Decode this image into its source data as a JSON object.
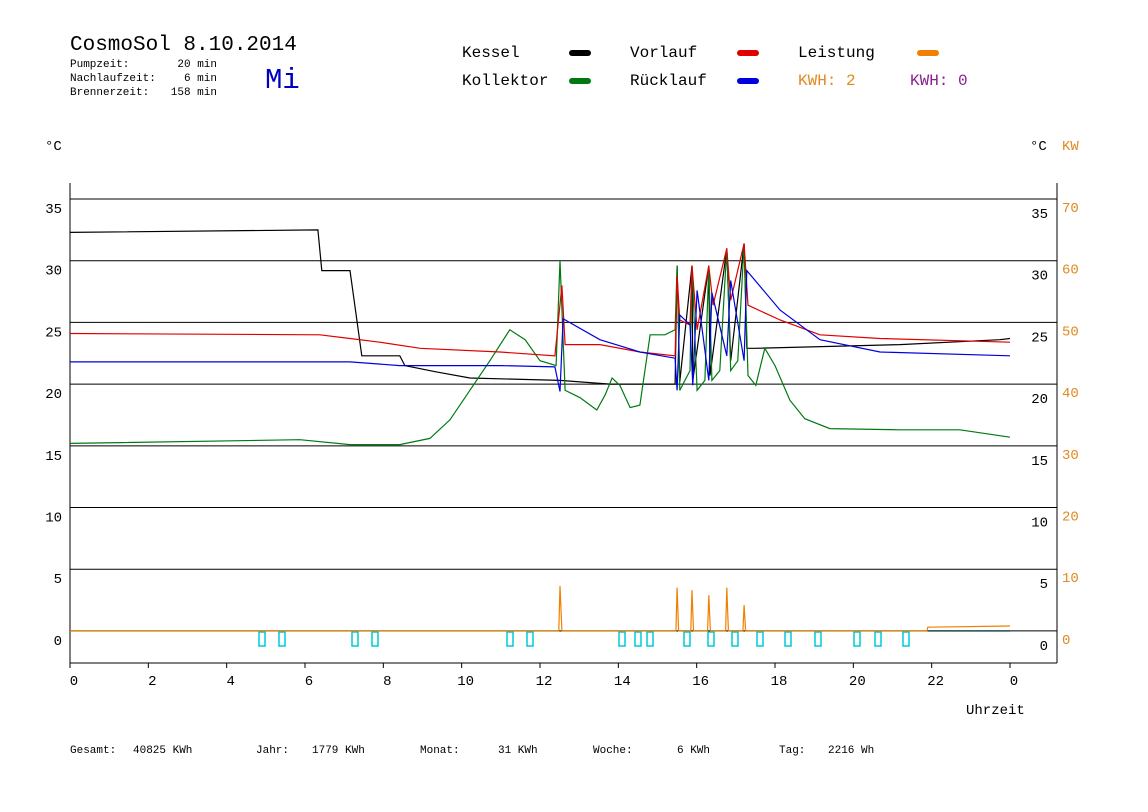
{
  "header": {
    "title": "CosmoSol 8.10.2014",
    "day": "Mi",
    "params": [
      {
        "label": "Pumpzeit:",
        "value": "20 min"
      },
      {
        "label": "Nachlaufzeit:",
        "value": "6 min"
      },
      {
        "label": "Brennerzeit:",
        "value": "158 min"
      }
    ]
  },
  "chart_data": {
    "type": "line",
    "y_label": "°C",
    "y2_label": "KW",
    "x_label": "Uhrzeit",
    "kwh_labels": [
      {
        "text": "KWH: 2",
        "color": "#e08a20"
      },
      {
        "text": "KWH: 0",
        "color": "#8a2090"
      }
    ],
    "xlim": [
      0,
      25.2
    ],
    "xticks": [
      0,
      2,
      4,
      6,
      8,
      10,
      12,
      14,
      16,
      18,
      20,
      22,
      {
        "value": 24,
        "label": "0"
      }
    ],
    "ylim": [
      -2.6,
      36.3
    ],
    "yticks": [
      0,
      5,
      10,
      15,
      20,
      25,
      30,
      35
    ],
    "y2lim": [
      -5.2,
      72.6
    ],
    "y2ticks": [
      0,
      10,
      20,
      30,
      40,
      50,
      60,
      70
    ],
    "grid": true,
    "series": [
      {
        "name": "Kessel",
        "color": "#000000",
        "x": [
          0,
          6.33,
          6.43,
          7.15,
          7.45,
          8.42,
          8.55,
          9.34,
          10.21,
          12.51,
          13.79,
          14.55,
          15.45,
          15.5,
          15.57,
          15.88,
          15.9,
          16.31,
          16.34,
          16.77,
          16.87,
          17.21,
          17.28,
          17.5,
          21.19,
          23.74,
          24
        ],
        "values": [
          32.3,
          32.5,
          29.2,
          29.2,
          22.3,
          22.3,
          21.5,
          21.0,
          20.5,
          20.3,
          20.0,
          20.0,
          20.0,
          29.6,
          20.2,
          29.6,
          20.3,
          29.6,
          20.7,
          31.0,
          21.9,
          31.4,
          22.9,
          22.9,
          23.2,
          23.6,
          23.7
        ]
      },
      {
        "name": "Kollektor",
        "color": "#007a10",
        "x": [
          0,
          5.87,
          7.15,
          8.42,
          9.19,
          9.7,
          10.21,
          10.72,
          11.23,
          11.62,
          12.0,
          12.41,
          12.51,
          12.64,
          13.02,
          13.45,
          13.66,
          13.84,
          14.04,
          14.3,
          14.55,
          14.81,
          15.19,
          15.45,
          15.5,
          15.57,
          15.83,
          15.88,
          16.01,
          16.21,
          16.31,
          16.39,
          16.59,
          16.77,
          16.87,
          17.05,
          17.21,
          17.31,
          17.51,
          17.74,
          18.0,
          18.38,
          18.76,
          19.4,
          21.19,
          22.72,
          24
        ],
        "values": [
          15.2,
          15.5,
          15.1,
          15.1,
          15.6,
          17.1,
          19.5,
          21.9,
          24.4,
          23.6,
          21.9,
          21.5,
          30.0,
          19.5,
          18.9,
          17.9,
          19.1,
          20.5,
          19.9,
          18.1,
          18.3,
          24.0,
          24.0,
          24.4,
          29.6,
          19.5,
          21.1,
          29.6,
          19.5,
          20.3,
          29.6,
          20.3,
          21.1,
          31.0,
          21.1,
          21.9,
          31.4,
          20.7,
          19.9,
          22.9,
          21.5,
          18.7,
          17.2,
          16.4,
          16.3,
          16.3,
          15.7
        ]
      },
      {
        "name": "Vorlauf",
        "color": "#e00000",
        "x": [
          0,
          6.38,
          7.15,
          7.91,
          8.94,
          10.98,
          12.38,
          12.56,
          12.64,
          13.53,
          14.55,
          15.45,
          15.5,
          15.57,
          15.83,
          15.88,
          16.01,
          16.31,
          16.42,
          16.77,
          16.87,
          17.21,
          17.31,
          18.13,
          19.15,
          20.68,
          24
        ],
        "values": [
          24.1,
          24.0,
          23.7,
          23.4,
          22.9,
          22.6,
          22.3,
          28.0,
          23.2,
          23.2,
          22.6,
          22.3,
          28.8,
          25.2,
          24.8,
          29.6,
          24.4,
          29.6,
          26.4,
          31.0,
          26.8,
          31.4,
          26.4,
          25.2,
          24.0,
          23.7,
          23.4
        ]
      },
      {
        "name": "Rücklauf",
        "color": "#0000e0",
        "x": [
          0,
          7.15,
          8.42,
          10.98,
          12.38,
          12.51,
          12.59,
          13.53,
          14.55,
          15.45,
          15.5,
          15.57,
          15.83,
          15.9,
          16.01,
          16.31,
          16.39,
          16.77,
          16.87,
          17.21,
          17.28,
          18.13,
          19.15,
          20.68,
          24
        ],
        "values": [
          21.8,
          21.8,
          21.5,
          21.5,
          21.4,
          19.4,
          25.3,
          23.6,
          22.6,
          22.1,
          19.5,
          25.6,
          24.8,
          19.9,
          27.6,
          20.3,
          27.4,
          22.3,
          28.4,
          21.9,
          29.2,
          26.0,
          23.6,
          22.6,
          22.3
        ]
      },
      {
        "name": "Leistung",
        "color": "#f08000",
        "axis": "y2",
        "x": [
          0,
          12.48,
          12.51,
          12.56,
          15.47,
          15.5,
          15.54,
          15.85,
          15.88,
          15.92,
          16.28,
          16.31,
          16.35,
          16.74,
          16.77,
          16.81,
          17.18,
          17.21,
          17.25,
          21.88,
          21.9,
          24
        ],
        "values": [
          0,
          0,
          7.3,
          0,
          0,
          7.0,
          0,
          0,
          6.6,
          0,
          0,
          5.8,
          0,
          0,
          7.0,
          0,
          0,
          4.2,
          0,
          0,
          0.6,
          0.8
        ]
      }
    ]
  },
  "footer": [
    {
      "label": "Gesamt:",
      "value": "40825 KWh"
    },
    {
      "label": "Jahr:",
      "value": "1779 KWh"
    },
    {
      "label": "Monat:",
      "value": "31 KWh"
    },
    {
      "label": "Woche:",
      "value": "6 KWh"
    },
    {
      "label": "Tag:",
      "value": "2216 Wh"
    }
  ]
}
